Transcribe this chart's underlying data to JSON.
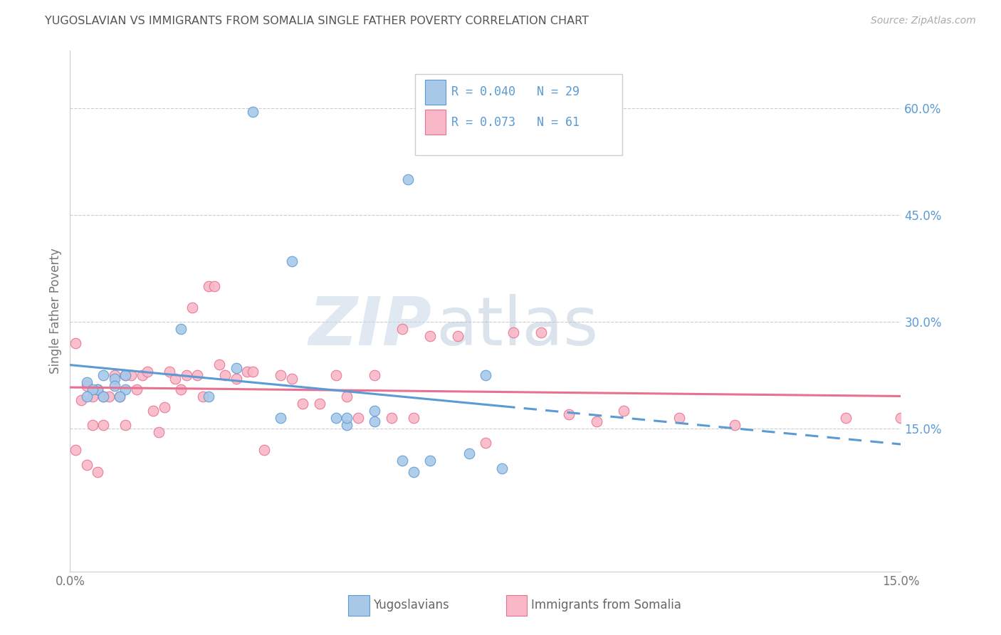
{
  "title": "YUGOSLAVIAN VS IMMIGRANTS FROM SOMALIA SINGLE FATHER POVERTY CORRELATION CHART",
  "source": "Source: ZipAtlas.com",
  "ylabel": "Single Father Poverty",
  "right_yticks": [
    "60.0%",
    "45.0%",
    "30.0%",
    "15.0%"
  ],
  "right_ytick_vals": [
    0.6,
    0.45,
    0.3,
    0.15
  ],
  "xlim": [
    0.0,
    0.15
  ],
  "ylim": [
    -0.05,
    0.68
  ],
  "legend_blue_R": "R = 0.040",
  "legend_blue_N": "N = 29",
  "legend_pink_R": "R = 0.073",
  "legend_pink_N": "N = 61",
  "legend_blue_label": "Yugoslavians",
  "legend_pink_label": "Immigrants from Somalia",
  "watermark_zip": "ZIP",
  "watermark_atlas": "atlas",
  "blue_color": "#a8c8e8",
  "blue_edge": "#5b9bd5",
  "pink_color": "#f9b8c8",
  "pink_edge": "#e87090",
  "blue_scatter_x": [
    0.033,
    0.061,
    0.003,
    0.005,
    0.006,
    0.004,
    0.003,
    0.008,
    0.01,
    0.008,
    0.01,
    0.009,
    0.006,
    0.04,
    0.02,
    0.03,
    0.025,
    0.048,
    0.05,
    0.055,
    0.06,
    0.065,
    0.072,
    0.078,
    0.038,
    0.05,
    0.055,
    0.062,
    0.075
  ],
  "blue_scatter_y": [
    0.595,
    0.5,
    0.215,
    0.205,
    0.195,
    0.205,
    0.195,
    0.22,
    0.225,
    0.21,
    0.205,
    0.195,
    0.225,
    0.385,
    0.29,
    0.235,
    0.195,
    0.165,
    0.155,
    0.175,
    0.105,
    0.105,
    0.115,
    0.095,
    0.165,
    0.165,
    0.16,
    0.09,
    0.225
  ],
  "pink_scatter_x": [
    0.001,
    0.001,
    0.002,
    0.003,
    0.003,
    0.004,
    0.004,
    0.005,
    0.005,
    0.006,
    0.006,
    0.007,
    0.008,
    0.009,
    0.01,
    0.01,
    0.011,
    0.012,
    0.013,
    0.014,
    0.015,
    0.016,
    0.017,
    0.018,
    0.019,
    0.02,
    0.021,
    0.022,
    0.023,
    0.024,
    0.025,
    0.026,
    0.027,
    0.028,
    0.03,
    0.032,
    0.033,
    0.035,
    0.038,
    0.04,
    0.042,
    0.045,
    0.048,
    0.05,
    0.052,
    0.055,
    0.058,
    0.06,
    0.062,
    0.065,
    0.07,
    0.075,
    0.08,
    0.085,
    0.09,
    0.095,
    0.1,
    0.11,
    0.12,
    0.14,
    0.15
  ],
  "pink_scatter_y": [
    0.27,
    0.12,
    0.19,
    0.21,
    0.1,
    0.195,
    0.155,
    0.205,
    0.09,
    0.195,
    0.155,
    0.195,
    0.225,
    0.195,
    0.225,
    0.155,
    0.225,
    0.205,
    0.225,
    0.23,
    0.175,
    0.145,
    0.18,
    0.23,
    0.22,
    0.205,
    0.225,
    0.32,
    0.225,
    0.195,
    0.35,
    0.35,
    0.24,
    0.225,
    0.22,
    0.23,
    0.23,
    0.12,
    0.225,
    0.22,
    0.185,
    0.185,
    0.225,
    0.195,
    0.165,
    0.225,
    0.165,
    0.29,
    0.165,
    0.28,
    0.28,
    0.13,
    0.285,
    0.285,
    0.17,
    0.16,
    0.175,
    0.165,
    0.155,
    0.165,
    0.165
  ],
  "grid_color": "#cccccc",
  "background_color": "#ffffff",
  "title_color": "#555555",
  "right_axis_color": "#5b9bd5"
}
